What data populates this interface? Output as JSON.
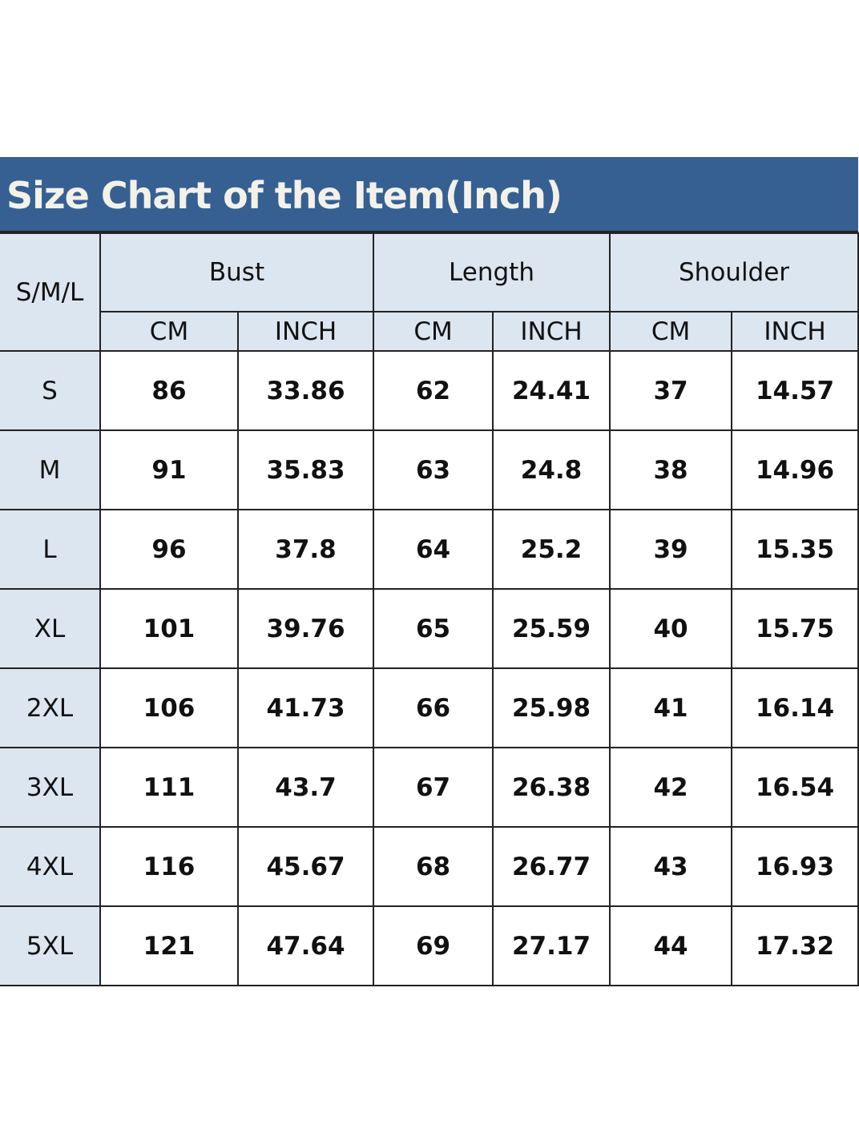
{
  "title": "Size Chart of the Item(Inch)",
  "colors": {
    "header_bg": "#366092",
    "cell_bg": "#dce6f1"
  },
  "table": {
    "size_header": "S/M/L",
    "groups": [
      "Bust",
      "Length",
      "Shoulder"
    ],
    "units": [
      "CM",
      "INCH",
      "CM",
      "INCH",
      "CM",
      "INCH"
    ],
    "rows": [
      {
        "size": "S",
        "values": [
          "86",
          "33.86",
          "62",
          "24.41",
          "37",
          "14.57"
        ]
      },
      {
        "size": "M",
        "values": [
          "91",
          "35.83",
          "63",
          "24.8",
          "38",
          "14.96"
        ]
      },
      {
        "size": "L",
        "values": [
          "96",
          "37.8",
          "64",
          "25.2",
          "39",
          "15.35"
        ]
      },
      {
        "size": "XL",
        "values": [
          "101",
          "39.76",
          "65",
          "25.59",
          "40",
          "15.75"
        ]
      },
      {
        "size": "2XL",
        "values": [
          "106",
          "41.73",
          "66",
          "25.98",
          "41",
          "16.14"
        ]
      },
      {
        "size": "3XL",
        "values": [
          "111",
          "43.7",
          "67",
          "26.38",
          "42",
          "16.54"
        ]
      },
      {
        "size": "4XL",
        "values": [
          "116",
          "45.67",
          "68",
          "26.77",
          "43",
          "16.93"
        ]
      },
      {
        "size": "5XL",
        "values": [
          "121",
          "47.64",
          "69",
          "27.17",
          "44",
          "17.32"
        ]
      }
    ]
  }
}
